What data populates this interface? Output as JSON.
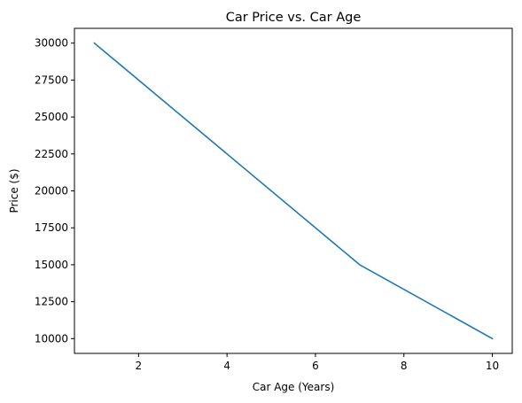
{
  "chart_data": {
    "type": "line",
    "title": "Car Price vs. Car Age",
    "xlabel": "Car Age (Years)",
    "ylabel": "Price ($)",
    "x": [
      1,
      7,
      10
    ],
    "series": [
      {
        "values": [
          30000,
          15000,
          10000
        ],
        "color": "#1f77b4"
      }
    ],
    "xlim": [
      0.55,
      10.45
    ],
    "ylim": [
      9000,
      31000
    ],
    "xticks": [
      2,
      4,
      6,
      8,
      10
    ],
    "yticks": [
      10000,
      12500,
      15000,
      17500,
      20000,
      22500,
      25000,
      27500,
      30000
    ],
    "grid": false,
    "legend": "none"
  }
}
